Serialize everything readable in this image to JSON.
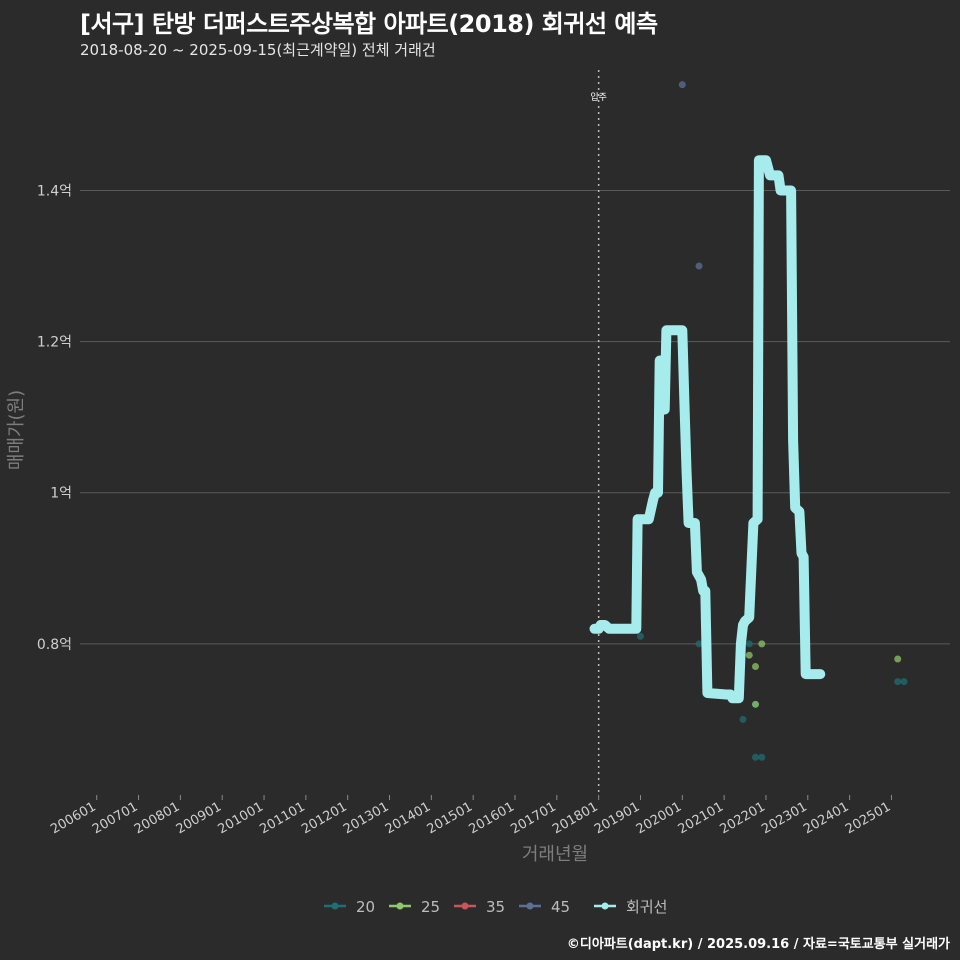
{
  "header": {
    "title": "[서구] 탄방 더퍼스트주상복합 아파트(2018) 회귀선 예측",
    "subtitle": "2018-08-20 ~ 2025-09-15(최근계약일) 전체 거래건"
  },
  "footer": {
    "credit": "©디아파트(dapt.kr) / 2025.09.16 / 자료=국토교통부 실거래가"
  },
  "colors": {
    "background": "#2b2b2b",
    "grid": "#5a5a5a",
    "regression": "#a6ecec",
    "s20": "#1f6f73",
    "s25": "#8fc76a",
    "s35": "#c9545b",
    "s45": "#5e6f95"
  },
  "chart_data": {
    "type": "line",
    "title": "[서구] 탄방 더퍼스트주상복합 아파트(2018) 회귀선 예측",
    "xlabel": "거래년월",
    "ylabel": "매매가(원)",
    "xlim": [
      2005.6,
      2026.4
    ],
    "ylim": [
      0.6,
      1.57
    ],
    "y_ticks": [
      {
        "value": 0.8,
        "label": "0.8억"
      },
      {
        "value": 1.0,
        "label": "1억"
      },
      {
        "value": 1.2,
        "label": "1.2억"
      },
      {
        "value": 1.4,
        "label": "1.4억"
      }
    ],
    "x_ticks": [
      {
        "value": 2006.0,
        "label": "200601"
      },
      {
        "value": 2007.0,
        "label": "200701"
      },
      {
        "value": 2008.0,
        "label": "200801"
      },
      {
        "value": 2009.0,
        "label": "200901"
      },
      {
        "value": 2010.0,
        "label": "201001"
      },
      {
        "value": 2011.0,
        "label": "201101"
      },
      {
        "value": 2012.0,
        "label": "201201"
      },
      {
        "value": 2013.0,
        "label": "201301"
      },
      {
        "value": 2014.0,
        "label": "201401"
      },
      {
        "value": 2015.0,
        "label": "201501"
      },
      {
        "value": 2016.0,
        "label": "201601"
      },
      {
        "value": 2017.0,
        "label": "201701"
      },
      {
        "value": 2018.0,
        "label": "201801"
      },
      {
        "value": 2019.0,
        "label": "201901"
      },
      {
        "value": 2020.0,
        "label": "202001"
      },
      {
        "value": 2021.0,
        "label": "202101"
      },
      {
        "value": 2022.0,
        "label": "202201"
      },
      {
        "value": 2023.0,
        "label": "202301"
      },
      {
        "value": 2024.0,
        "label": "202401"
      },
      {
        "value": 2025.0,
        "label": "202501"
      }
    ],
    "annotation": {
      "label": "입주",
      "x": 2018.0
    },
    "legend": [
      {
        "name": "20",
        "color": "#1f6f73"
      },
      {
        "name": "25",
        "color": "#8fc76a"
      },
      {
        "name": "35",
        "color": "#c9545b"
      },
      {
        "name": "45",
        "color": "#5e6f95"
      },
      {
        "name": "회귀선",
        "color": "#a6ecec"
      }
    ],
    "series": [
      {
        "name": "20",
        "color": "#1f6f73",
        "points": [
          {
            "x": 2019.0,
            "y": 0.81
          },
          {
            "x": 2020.4,
            "y": 0.8
          },
          {
            "x": 2021.45,
            "y": 0.7
          },
          {
            "x": 2021.6,
            "y": 0.8
          },
          {
            "x": 2021.75,
            "y": 0.65
          },
          {
            "x": 2021.9,
            "y": 0.65
          },
          {
            "x": 2021.75,
            "y": 0.72
          },
          {
            "x": 2025.15,
            "y": 0.75
          },
          {
            "x": 2025.3,
            "y": 0.75
          }
        ]
      },
      {
        "name": "25",
        "color": "#8fc76a",
        "points": [
          {
            "x": 2021.6,
            "y": 0.785
          },
          {
            "x": 2021.75,
            "y": 0.77
          },
          {
            "x": 2021.75,
            "y": 0.72
          },
          {
            "x": 2021.9,
            "y": 0.8
          },
          {
            "x": 2025.15,
            "y": 0.78
          }
        ]
      },
      {
        "name": "35",
        "color": "#c9545b",
        "points": []
      },
      {
        "name": "45",
        "color": "#5e6f95",
        "points": [
          {
            "x": 2020.0,
            "y": 1.54
          },
          {
            "x": 2020.4,
            "y": 1.3
          }
        ]
      },
      {
        "name": "회귀선",
        "color": "#a6ecec",
        "points": [
          {
            "x": 2017.9,
            "y": 0.82
          },
          {
            "x": 2018.0,
            "y": 0.82
          },
          {
            "x": 2018.05,
            "y": 0.825
          },
          {
            "x": 2018.15,
            "y": 0.825
          },
          {
            "x": 2018.25,
            "y": 0.82
          },
          {
            "x": 2018.9,
            "y": 0.82
          },
          {
            "x": 2018.93,
            "y": 0.965
          },
          {
            "x": 2019.2,
            "y": 0.965
          },
          {
            "x": 2019.3,
            "y": 0.99
          },
          {
            "x": 2019.35,
            "y": 1.0
          },
          {
            "x": 2019.42,
            "y": 1.0
          },
          {
            "x": 2019.46,
            "y": 1.175
          },
          {
            "x": 2019.5,
            "y": 1.175
          },
          {
            "x": 2019.53,
            "y": 1.11
          },
          {
            "x": 2019.58,
            "y": 1.11
          },
          {
            "x": 2019.62,
            "y": 1.215
          },
          {
            "x": 2020.0,
            "y": 1.215
          },
          {
            "x": 2020.05,
            "y": 1.12
          },
          {
            "x": 2020.1,
            "y": 1.03
          },
          {
            "x": 2020.15,
            "y": 0.96
          },
          {
            "x": 2020.3,
            "y": 0.96
          },
          {
            "x": 2020.35,
            "y": 0.895
          },
          {
            "x": 2020.45,
            "y": 0.885
          },
          {
            "x": 2020.5,
            "y": 0.87
          },
          {
            "x": 2020.55,
            "y": 0.87
          },
          {
            "x": 2020.6,
            "y": 0.735
          },
          {
            "x": 2021.05,
            "y": 0.733
          },
          {
            "x": 2021.15,
            "y": 0.733
          },
          {
            "x": 2021.2,
            "y": 0.728
          },
          {
            "x": 2021.35,
            "y": 0.728
          },
          {
            "x": 2021.4,
            "y": 0.8
          },
          {
            "x": 2021.45,
            "y": 0.825
          },
          {
            "x": 2021.5,
            "y": 0.83
          },
          {
            "x": 2021.6,
            "y": 0.835
          },
          {
            "x": 2021.7,
            "y": 0.96
          },
          {
            "x": 2021.8,
            "y": 0.965
          },
          {
            "x": 2021.83,
            "y": 1.44
          },
          {
            "x": 2022.0,
            "y": 1.44
          },
          {
            "x": 2022.1,
            "y": 1.42
          },
          {
            "x": 2022.3,
            "y": 1.42
          },
          {
            "x": 2022.35,
            "y": 1.4
          },
          {
            "x": 2022.6,
            "y": 1.4
          },
          {
            "x": 2022.65,
            "y": 1.07
          },
          {
            "x": 2022.7,
            "y": 0.98
          },
          {
            "x": 2022.8,
            "y": 0.975
          },
          {
            "x": 2022.85,
            "y": 0.92
          },
          {
            "x": 2022.9,
            "y": 0.915
          },
          {
            "x": 2022.95,
            "y": 0.76
          },
          {
            "x": 2023.3,
            "y": 0.76
          }
        ]
      }
    ]
  }
}
